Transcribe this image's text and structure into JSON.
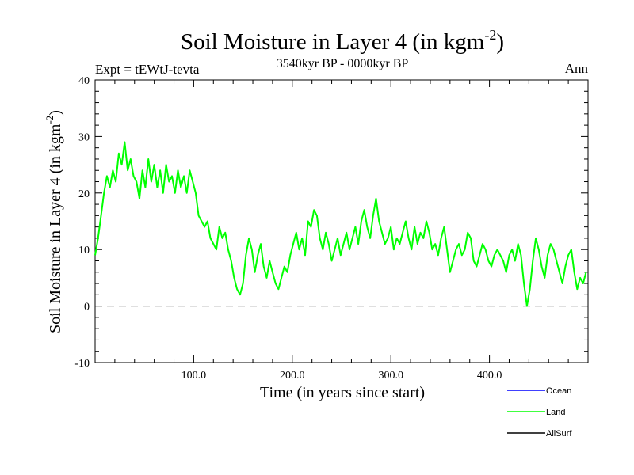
{
  "chart_data": {
    "type": "line",
    "title": "Soil Moisture in Layer 4 (in kgm",
    "title_sup": "-2",
    "title_close": ")",
    "subtitle_left": "Expt = tEWtJ-tevta",
    "subtitle_center": "3540kyr BP - 0000kyr BP",
    "subtitle_right": "Ann",
    "xlabel": "Time (in years since start)",
    "ylabel": "Soil Moisture in Layer 4 (in kgm",
    "ylabel_sup": "-2",
    "ylabel_close": ")",
    "xlim": [
      0,
      500
    ],
    "ylim": [
      -10,
      40
    ],
    "x_ticks": [
      {
        "value": 100,
        "label": "100.0"
      },
      {
        "value": 200,
        "label": "200.0"
      },
      {
        "value": 300,
        "label": "300.0"
      },
      {
        "value": 400,
        "label": "400.0"
      }
    ],
    "y_ticks": [
      {
        "value": -10,
        "label": "-10"
      },
      {
        "value": 0,
        "label": "0"
      },
      {
        "value": 10,
        "label": "10"
      },
      {
        "value": 20,
        "label": "20"
      },
      {
        "value": 30,
        "label": "30"
      },
      {
        "value": 40,
        "label": "40"
      }
    ],
    "reference_line": {
      "y": 0,
      "style": "dashed"
    },
    "legend": [
      {
        "name": "Ocean",
        "color": "#0000ff"
      },
      {
        "name": "Land",
        "color": "#00ff00"
      },
      {
        "name": "AllSurf",
        "color": "#000000"
      }
    ],
    "series": [
      {
        "name": "Land",
        "color": "#00ff00",
        "x": [
          0,
          3,
          6,
          9,
          12,
          15,
          18,
          21,
          24,
          27,
          30,
          33,
          36,
          39,
          42,
          45,
          48,
          51,
          54,
          57,
          60,
          63,
          66,
          69,
          72,
          75,
          78,
          81,
          84,
          87,
          90,
          93,
          96,
          99,
          102,
          105,
          108,
          111,
          114,
          117,
          120,
          123,
          126,
          129,
          132,
          135,
          138,
          141,
          144,
          147,
          150,
          153,
          156,
          159,
          162,
          165,
          168,
          171,
          174,
          177,
          180,
          183,
          186,
          189,
          192,
          195,
          198,
          201,
          204,
          207,
          210,
          213,
          216,
          219,
          222,
          225,
          228,
          231,
          234,
          237,
          240,
          243,
          246,
          249,
          252,
          255,
          258,
          261,
          264,
          267,
          270,
          273,
          276,
          279,
          282,
          285,
          288,
          291,
          294,
          297,
          300,
          303,
          306,
          309,
          312,
          315,
          318,
          321,
          324,
          327,
          330,
          333,
          336,
          339,
          342,
          345,
          348,
          351,
          354,
          357,
          360,
          363,
          366,
          369,
          372,
          375,
          378,
          381,
          384,
          387,
          390,
          393,
          396,
          399,
          402,
          405,
          408,
          411,
          414,
          417,
          420,
          423,
          426,
          429,
          432,
          435,
          438,
          441,
          444,
          447,
          450,
          453,
          456,
          459,
          462,
          465,
          468,
          471,
          474,
          477,
          480,
          483,
          486,
          489,
          492,
          495,
          498
        ],
        "values": [
          9,
          12,
          16,
          20,
          23,
          21,
          24,
          22,
          27,
          25,
          29,
          24,
          26,
          23,
          22,
          19,
          24,
          21,
          26,
          22,
          25,
          21,
          24,
          20,
          25,
          22,
          23,
          20,
          24,
          21,
          23,
          20,
          24,
          22,
          20,
          16,
          15,
          14,
          15,
          12,
          11,
          10,
          14,
          12,
          13,
          10,
          8,
          5,
          3,
          2,
          4,
          9,
          12,
          10,
          6,
          9,
          11,
          7,
          5,
          8,
          6,
          4,
          3,
          5,
          7,
          6,
          9,
          11,
          13,
          10,
          12,
          9,
          15,
          14,
          17,
          16,
          12,
          10,
          13,
          11,
          8,
          10,
          12,
          9,
          11,
          13,
          10,
          12,
          14,
          11,
          15,
          17,
          14,
          12,
          16,
          19,
          15,
          13,
          11,
          12,
          14,
          10,
          12,
          11,
          13,
          15,
          12,
          10,
          14,
          11,
          13,
          12,
          15,
          13,
          10,
          11,
          9,
          12,
          14,
          10,
          6,
          8,
          10,
          11,
          9,
          10,
          13,
          12,
          8,
          7,
          9,
          11,
          10,
          8,
          7,
          9,
          10,
          9,
          8,
          6,
          9,
          10,
          8,
          11,
          9,
          4,
          0,
          3,
          8,
          12,
          10,
          7,
          5,
          9,
          11,
          10,
          8,
          6,
          4,
          7,
          9,
          10,
          6,
          3,
          5,
          4,
          6
        ]
      }
    ]
  }
}
